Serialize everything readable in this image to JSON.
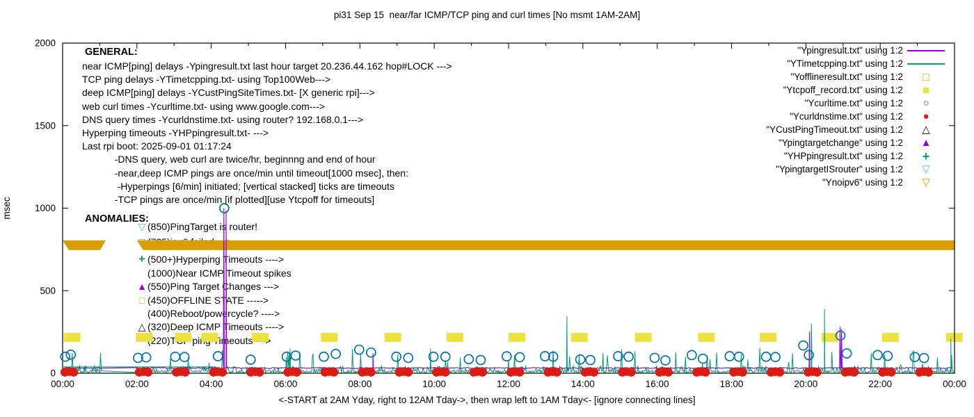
{
  "title": "pi31 Sep 15  near/far ICMP/TCP ping and curl times [No msmt 1AM-2AM]",
  "colors": {
    "purple": "#9400d3",
    "green": "#009e73",
    "orange": "#e69f00",
    "yellow": "#ede13e",
    "blue": "#0072b2",
    "red": "#dd1c10",
    "black": "#000000",
    "cyan": "#56b4e9",
    "gold": "#d89e00"
  },
  "axes": {
    "y_label": "msec",
    "y_ticks": [
      0,
      500,
      1000,
      1500,
      2000
    ],
    "ylim": [
      0,
      2000
    ],
    "x_tick_labels": [
      "00:00",
      "02:00",
      "04:00",
      "06:00",
      "08:00",
      "10:00",
      "12:00",
      "14:00",
      "16:00",
      "18:00",
      "20:00",
      "22:00",
      "00:00"
    ],
    "x_caption": "<-START at 2AM Yday, right to 12AM Tday->, then wrap left to 1AM Tday<- [ignore connecting lines]"
  },
  "general": {
    "heading": "GENERAL:",
    "lines": [
      "near ICMP[ping] delays -Ypingresult.txt last hour target 20.236.44.162 hop#LOCK --->",
      "TCP ping delays -YTimetcpping.txt- using Top100Web--->",
      "deep ICMP[ping] delays -YCustPingSiteTimes.txt- [X generic rpi]--->",
      "web curl times -Ycurltime.txt- using www.google.com--->",
      "DNS query times -Ycurldnstime.txt- using router? 192.168.0.1--->",
      "Hyperping timeouts -YHPpingresult.txt- --->",
      "Last rpi boot: 2025-09-01 01:17:24",
      "            -DNS query, web curl are twice/hr, beginnng and end of hour",
      "            -near,deep ICMP pings are once/min until timeout[1000 msec], then:",
      "             -Hyperpings [6/min] initiated; [vertical stacked] ticks are timeouts",
      "            -TCP pings are once/min [if plotted][use Ytcpoff for timeouts]"
    ]
  },
  "anomalies": {
    "heading": "ANOMALIES:",
    "items": [
      {
        "marker": "▽",
        "color_key": "cyan",
        "text": "(850)PingTarget is router!",
        "at_msec": 888
      },
      {
        "marker": "▽",
        "color_key": "gold",
        "text": "(735)ipv6 failed --->",
        "at_msec": 795
      },
      {
        "marker": "+",
        "color_key": "green",
        "text": "(500+)Hyperping Timeouts ---->",
        "at_msec": 690
      },
      {
        "marker": "",
        "color_key": "black",
        "text": "(1000)Near ICMP Timeout spikes",
        "at_msec": 606
      },
      {
        "marker": "▲",
        "color_key": "purple",
        "text": "(550)Ping Target Changes --->",
        "at_msec": 526
      },
      {
        "marker": "□",
        "color_key": "orange",
        "text": "(450)OFFLINE STATE ----->",
        "at_msec": 442
      },
      {
        "marker": "",
        "color_key": "black",
        "text": "(400)Reboot/powercycle? ---->",
        "at_msec": 362
      },
      {
        "marker": "△",
        "color_key": "black",
        "text": "(320)Deep ICMP Timeouts ---->",
        "at_msec": 282
      },
      {
        "marker": "",
        "color_key": "black",
        "text": "(220)TCP ping Timeouts --->",
        "at_msec": 198
      }
    ]
  },
  "legend": {
    "entries": [
      {
        "label": "\"Ypingresult.txt\" using 1:2",
        "sample": "line",
        "color_key": "purple"
      },
      {
        "label": "\"YTimetcpping.txt\" using 1:2",
        "sample": "line",
        "color_key": "green"
      },
      {
        "label": "\"Yofflineresult.txt\" using 1:2",
        "sample": "square-open",
        "color_key": "orange"
      },
      {
        "label": "\"Ytcpoff_record.txt\" using 1:2",
        "sample": "square-filled",
        "color_key": "yellow"
      },
      {
        "label": "\"Ycurltime.txt\" using 1:2",
        "sample": "circle-open",
        "color_key": "blue"
      },
      {
        "label": "\"Ycurldnstime.txt\" using 1:2",
        "sample": "circle-filled",
        "color_key": "red"
      },
      {
        "label": "\"YCustPingTimeout.txt\" using 1:2",
        "sample": "triangle-open",
        "color_key": "black"
      },
      {
        "label": "\"Ypingtargetchange\" using 1:2",
        "sample": "triangle-filled",
        "color_key": "purple"
      },
      {
        "label": "\"YHPpingresult.txt\" using 1:2",
        "sample": "plus",
        "color_key": "green"
      },
      {
        "label": "\"YpingtargetISrouter\" using 1:2",
        "sample": "tri-down-open",
        "color_key": "cyan"
      },
      {
        "label": "\"Ynoipv6\" using 1:2",
        "sample": "tri-down-open",
        "color_key": "gold"
      }
    ]
  },
  "chart_data": {
    "type": "line",
    "description": "mixed gnuplot timeseries: lines + scatter markers + bands, msec vs time of day",
    "x_hours_range": [
      0,
      24
    ],
    "ylim": [
      0,
      2000
    ],
    "no_measurement_gap_hours": [
      1.05,
      2.0
    ],
    "noipv6_band": {
      "name": "Ynoipv6",
      "color_key": "gold",
      "msec_range": [
        746,
        805
      ],
      "segments_hours": [
        [
          0,
          1.16
        ],
        [
          2.0,
          24
        ]
      ]
    },
    "tcpoff_blocks": {
      "name": "Ytcpoff_record (TCP ping timeouts ~220 msec)",
      "color_key": "yellow",
      "msec_range": [
        190,
        244
      ],
      "width_hours": 0.45,
      "start_hours": [
        0.03,
        1.97,
        3.02,
        3.73,
        5.09,
        6.95,
        8.66,
        10.33,
        12.0,
        13.68,
        15.4,
        17.1,
        18.76,
        20.42,
        22.05,
        23.77
      ]
    },
    "near_icmp_line": {
      "name": "Ypingresult (near ICMP ping)",
      "color_key": "purple",
      "baseline_msec": 31,
      "noise_msec": 7,
      "spikes": [
        [
          4.34,
          1000
        ],
        [
          4.4,
          985
        ],
        [
          8.35,
          120
        ],
        [
          20.1,
          252
        ],
        [
          20.92,
          283
        ],
        [
          20.96,
          268
        ]
      ]
    },
    "tcp_ping_line": {
      "name": "YTimetcpping (TCP ping)",
      "color_key": "green",
      "baseline_msec": 12,
      "typical_range_msec": [
        2,
        60
      ],
      "spikes": [
        [
          6.12,
          150
        ],
        [
          9.9,
          150
        ],
        [
          13.57,
          345
        ],
        [
          20.15,
          300
        ],
        [
          20.5,
          390
        ],
        [
          23.9,
          210
        ]
      ],
      "wrap_connector": {
        "hours": [
          0,
          4.12
        ],
        "msec": 38
      }
    },
    "web_curl_points": {
      "name": "Ycurltime (web curl, twice/hr)",
      "color_key": "blue",
      "points": [
        [
          0.07,
          100
        ],
        [
          0.22,
          112
        ],
        [
          2.03,
          93
        ],
        [
          2.25,
          96
        ],
        [
          3.03,
          100
        ],
        [
          3.28,
          98
        ],
        [
          4.18,
          103
        ],
        [
          4.35,
          1000
        ],
        [
          5.06,
          82
        ],
        [
          6.03,
          100
        ],
        [
          6.27,
          107
        ],
        [
          7.03,
          100
        ],
        [
          7.35,
          117
        ],
        [
          7.98,
          143
        ],
        [
          8.3,
          125
        ],
        [
          8.98,
          100
        ],
        [
          9.3,
          93
        ],
        [
          9.98,
          100
        ],
        [
          10.3,
          100
        ],
        [
          10.93,
          85
        ],
        [
          11.25,
          80
        ],
        [
          11.95,
          102
        ],
        [
          12.3,
          97
        ],
        [
          12.98,
          103
        ],
        [
          13.2,
          100
        ],
        [
          13.93,
          83
        ],
        [
          14.2,
          80
        ],
        [
          14.95,
          103
        ],
        [
          15.23,
          100
        ],
        [
          15.93,
          93
        ],
        [
          16.22,
          78
        ],
        [
          16.93,
          110
        ],
        [
          17.23,
          88
        ],
        [
          17.95,
          103
        ],
        [
          18.2,
          100
        ],
        [
          18.93,
          100
        ],
        [
          19.18,
          98
        ],
        [
          19.93,
          168
        ],
        [
          20.08,
          110
        ],
        [
          20.93,
          228
        ],
        [
          21.1,
          120
        ],
        [
          21.93,
          110
        ],
        [
          22.2,
          105
        ],
        [
          22.93,
          98
        ],
        [
          23.18,
          92
        ]
      ]
    },
    "dns_points": {
      "name": "Ycurldnstime (DNS query, near 0 msec)",
      "color_key": "red",
      "cluster_hours": [
        0,
        2,
        3,
        4,
        5,
        6,
        7,
        8,
        9,
        10,
        11,
        12,
        13,
        14,
        15,
        16,
        17,
        18,
        19,
        20,
        21,
        22,
        23
      ],
      "cluster_offsets_hours": [
        0.06,
        0.18,
        0.3
      ],
      "cluster_msec": [
        6,
        10,
        6
      ]
    }
  }
}
